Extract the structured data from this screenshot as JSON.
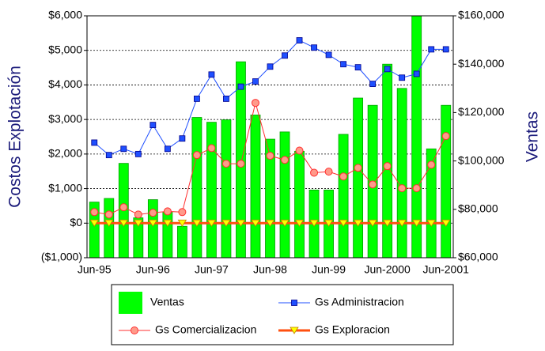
{
  "chart_data": {
    "type": "combo",
    "ylabel": "Costos Explotación",
    "y2label": "Ventas",
    "categories": [
      "Jun-95",
      null,
      null,
      null,
      "Jun-96",
      null,
      null,
      null,
      "Jun-97",
      null,
      null,
      null,
      "Jun-98",
      null,
      null,
      null,
      "Jun-99",
      null,
      null,
      null,
      "Jun-2000",
      null,
      null,
      null,
      "Jun-2001"
    ],
    "ylim": [
      -1000,
      6000
    ],
    "yticks": [
      {
        "value": -1000,
        "label": "($1,000)"
      },
      {
        "value": 0,
        "label": "$0"
      },
      {
        "value": 1000,
        "label": "$1,000"
      },
      {
        "value": 2000,
        "label": "$2,000"
      },
      {
        "value": 3000,
        "label": "$3,000"
      },
      {
        "value": 4000,
        "label": "$4,000"
      },
      {
        "value": 5000,
        "label": "$5,000"
      },
      {
        "value": 6000,
        "label": "$6,000"
      }
    ],
    "y2lim": [
      60000,
      160000
    ],
    "y2ticks": [
      {
        "value": 60000,
        "label": "$60,000"
      },
      {
        "value": 80000,
        "label": "$80,000"
      },
      {
        "value": 100000,
        "label": "$100,000"
      },
      {
        "value": 120000,
        "label": "$120,000"
      },
      {
        "value": 140000,
        "label": "$140,000"
      },
      {
        "value": 160000,
        "label": "$160,000"
      }
    ],
    "grid": true,
    "series": [
      {
        "name": "Ventas",
        "kind": "bar",
        "axis": "y2",
        "color": "#00ff00",
        "values": [
          83000,
          84500,
          99000,
          76500,
          84000,
          79000,
          73000,
          118000,
          116000,
          117000,
          141000,
          119000,
          109000,
          112000,
          104000,
          88000,
          88000,
          111000,
          126000,
          123000,
          140000,
          130000,
          160000,
          105000,
          123000
        ]
      },
      {
        "name": "Gs Administracion",
        "kind": "line",
        "marker": "square",
        "color": "#1f4fff",
        "values": [
          2330,
          1970,
          2150,
          2000,
          2840,
          2150,
          2450,
          3600,
          4300,
          3600,
          3950,
          4100,
          4530,
          4850,
          5290,
          5080,
          4870,
          4600,
          4510,
          4030,
          4460,
          4210,
          4320,
          5030,
          5030
        ]
      },
      {
        "name": "Gs Comercializacion",
        "kind": "line",
        "marker": "circle",
        "color": "#ff3030",
        "values": [
          320,
          250,
          460,
          250,
          300,
          340,
          320,
          1970,
          2170,
          1720,
          1720,
          3480,
          1950,
          1830,
          2100,
          1460,
          1490,
          1350,
          1600,
          1120,
          1650,
          1010,
          1010,
          1690,
          2520
        ]
      },
      {
        "name": "Gs Exploracion",
        "kind": "line",
        "marker": "triangle",
        "color": "#ff5010",
        "values": [
          0,
          0,
          0,
          0,
          0,
          0,
          0,
          0,
          0,
          0,
          0,
          0,
          0,
          0,
          0,
          0,
          0,
          0,
          0,
          0,
          0,
          0,
          0,
          0,
          0
        ]
      }
    ]
  }
}
